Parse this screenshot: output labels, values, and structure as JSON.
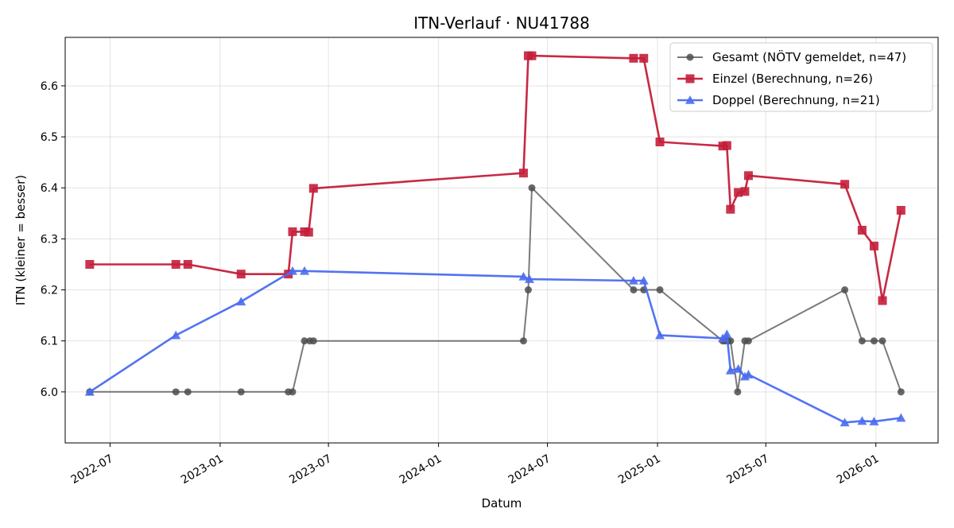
{
  "chart_data": {
    "type": "line",
    "title": "ITN-Verlauf · NU41788",
    "xlabel": "Datum",
    "ylabel": "ITN  (kleiner = besser)",
    "x_type": "date",
    "xlim": [
      "2022-04-17",
      "2026-04-15"
    ],
    "ylim": [
      5.9,
      6.695
    ],
    "x_ticks": [
      {
        "date": "2022-07-01",
        "label": "2022-07"
      },
      {
        "date": "2023-01-01",
        "label": "2023-01"
      },
      {
        "date": "2023-07-01",
        "label": "2023-07"
      },
      {
        "date": "2024-01-01",
        "label": "2024-01"
      },
      {
        "date": "2024-07-01",
        "label": "2024-07"
      },
      {
        "date": "2025-01-01",
        "label": "2025-01"
      },
      {
        "date": "2025-07-01",
        "label": "2025-07"
      },
      {
        "date": "2026-01-01",
        "label": "2026-01"
      }
    ],
    "y_ticks": [
      6.0,
      6.1,
      6.2,
      6.3,
      6.4,
      6.5,
      6.6
    ],
    "grid": true,
    "legend": "top-right",
    "series": [
      {
        "name": "Gesamt (NÖTV gemeldet, n=47)",
        "color": "#4d4d4d",
        "marker": "circle",
        "points": [
          {
            "x": "2022-05-28",
            "y": 6.0
          },
          {
            "x": "2022-10-19",
            "y": 6.0
          },
          {
            "x": "2022-11-08",
            "y": 6.0
          },
          {
            "x": "2023-02-05",
            "y": 6.0
          },
          {
            "x": "2023-04-25",
            "y": 6.0
          },
          {
            "x": "2023-05-02",
            "y": 6.0
          },
          {
            "x": "2023-05-22",
            "y": 6.1
          },
          {
            "x": "2023-05-31",
            "y": 6.1
          },
          {
            "x": "2023-06-06",
            "y": 6.1
          },
          {
            "x": "2024-05-22",
            "y": 6.1
          },
          {
            "x": "2024-05-30",
            "y": 6.2
          },
          {
            "x": "2024-06-05",
            "y": 6.4
          },
          {
            "x": "2024-11-22",
            "y": 6.2
          },
          {
            "x": "2024-12-09",
            "y": 6.2
          },
          {
            "x": "2025-01-05",
            "y": 6.2
          },
          {
            "x": "2025-04-20",
            "y": 6.1
          },
          {
            "x": "2025-04-24",
            "y": 6.1
          },
          {
            "x": "2025-04-29",
            "y": 6.1
          },
          {
            "x": "2025-05-03",
            "y": 6.1
          },
          {
            "x": "2025-05-15",
            "y": 6.0
          },
          {
            "x": "2025-05-27",
            "y": 6.1
          },
          {
            "x": "2025-06-02",
            "y": 6.1
          },
          {
            "x": "2025-11-10",
            "y": 6.2
          },
          {
            "x": "2025-12-09",
            "y": 6.1
          },
          {
            "x": "2025-12-29",
            "y": 6.1
          },
          {
            "x": "2026-01-12",
            "y": 6.1
          },
          {
            "x": "2026-02-12",
            "y": 6.0
          }
        ]
      },
      {
        "name": "Einzel (Berechnung, n=26)",
        "color": "#c41e3a",
        "marker": "square",
        "points": [
          {
            "x": "2022-05-28",
            "y": 6.25
          },
          {
            "x": "2022-10-19",
            "y": 6.25
          },
          {
            "x": "2022-11-08",
            "y": 6.25
          },
          {
            "x": "2023-02-05",
            "y": 6.231
          },
          {
            "x": "2023-04-25",
            "y": 6.231
          },
          {
            "x": "2023-05-02",
            "y": 6.314
          },
          {
            "x": "2023-05-22",
            "y": 6.314
          },
          {
            "x": "2023-05-29",
            "y": 6.313
          },
          {
            "x": "2023-06-06",
            "y": 6.399
          },
          {
            "x": "2024-05-22",
            "y": 6.429
          },
          {
            "x": "2024-05-30",
            "y": 6.659
          },
          {
            "x": "2024-06-05",
            "y": 6.659
          },
          {
            "x": "2024-11-22",
            "y": 6.654
          },
          {
            "x": "2024-12-09",
            "y": 6.654
          },
          {
            "x": "2025-01-05",
            "y": 6.49
          },
          {
            "x": "2025-04-20",
            "y": 6.482
          },
          {
            "x": "2025-04-27",
            "y": 6.483
          },
          {
            "x": "2025-05-03",
            "y": 6.358
          },
          {
            "x": "2025-05-16",
            "y": 6.391
          },
          {
            "x": "2025-05-27",
            "y": 6.393
          },
          {
            "x": "2025-06-02",
            "y": 6.424
          },
          {
            "x": "2025-11-10",
            "y": 6.407
          },
          {
            "x": "2025-12-09",
            "y": 6.317
          },
          {
            "x": "2025-12-29",
            "y": 6.286
          },
          {
            "x": "2026-01-12",
            "y": 6.179
          },
          {
            "x": "2026-02-12",
            "y": 6.356
          }
        ]
      },
      {
        "name": "Doppel (Berechnung, n=21)",
        "color": "#4a6cf0",
        "marker": "triangle",
        "points": [
          {
            "x": "2022-05-28",
            "y": 6.0
          },
          {
            "x": "2022-10-19",
            "y": 6.111
          },
          {
            "x": "2023-02-05",
            "y": 6.177
          },
          {
            "x": "2023-05-02",
            "y": 6.237
          },
          {
            "x": "2023-05-22",
            "y": 6.237
          },
          {
            "x": "2024-05-22",
            "y": 6.226
          },
          {
            "x": "2024-06-01",
            "y": 6.221
          },
          {
            "x": "2024-11-22",
            "y": 6.218
          },
          {
            "x": "2024-12-09",
            "y": 6.218
          },
          {
            "x": "2025-01-05",
            "y": 6.111
          },
          {
            "x": "2025-04-20",
            "y": 6.105
          },
          {
            "x": "2025-04-27",
            "y": 6.113
          },
          {
            "x": "2025-05-03",
            "y": 6.042
          },
          {
            "x": "2025-05-16",
            "y": 6.045
          },
          {
            "x": "2025-05-27",
            "y": 6.03
          },
          {
            "x": "2025-06-02",
            "y": 6.034
          },
          {
            "x": "2025-11-10",
            "y": 5.94
          },
          {
            "x": "2025-12-09",
            "y": 5.943
          },
          {
            "x": "2025-12-29",
            "y": 5.942
          },
          {
            "x": "2026-02-12",
            "y": 5.949
          }
        ]
      }
    ]
  }
}
